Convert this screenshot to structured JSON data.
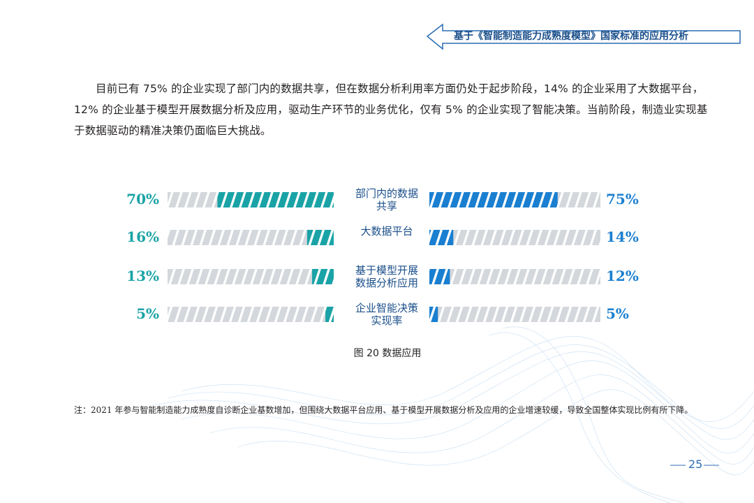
{
  "header": {
    "title": "基于《智能制造能力成熟度模型》国家标准的应用分析"
  },
  "body": {
    "paragraph": "目前已有 75% 的企业实现了部门内的数据共享，但在数据分析利用率方面仍处于起步阶段，14% 的企业采用了大数据平台，12% 的企业基于模型开展数据分析及应用，驱动生产环节的业务优化，仅有 5% 的企业实现了智能决策。当前阶段，制造业实现基于数据驱动的精准决策仍面临巨大挑战。"
  },
  "chart_data": {
    "type": "butterfly",
    "categories": [
      "部门内的数据共享",
      "大数据平台",
      "基于模型开展数据分析应用",
      "企业智能决策实现率"
    ],
    "xlim": [
      0,
      100
    ],
    "series": [
      {
        "color": "#1aa3a6",
        "values": [
          70,
          16,
          13,
          5
        ],
        "value_labels": [
          "70%",
          "16%",
          "13%",
          "5%"
        ]
      },
      {
        "color": "#1a7fd0",
        "values": [
          75,
          14,
          12,
          5
        ],
        "value_labels": [
          "75%",
          "14%",
          "12%",
          "5%"
        ]
      }
    ],
    "caption": "图 20  数据应用"
  },
  "note": "注：2021 年参与智能制造能力成熟度自诊断企业基数增加，但围绕大数据平台应用、基于模型开展数据分析及应用的企业增速较缓，导致全国整体实现比例有所下降。",
  "page_number": "25"
}
